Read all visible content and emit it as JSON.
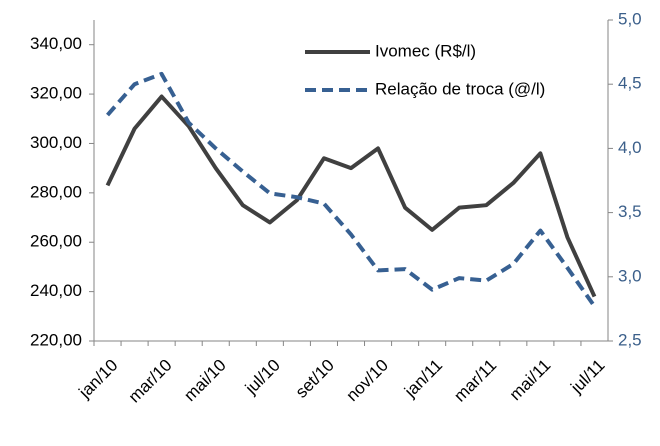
{
  "chart_data": {
    "type": "line",
    "categories": [
      "jan/10",
      null,
      "mar/10",
      null,
      "mai/10",
      null,
      "jul/10",
      null,
      "set/10",
      null,
      "nov/10",
      null,
      "jan/11",
      null,
      "mar/11",
      null,
      "mai/11",
      null,
      "jul/11"
    ],
    "series": [
      {
        "name": "Ivomec (R$/l)",
        "color": "#404040",
        "dash": false,
        "values": [
          283,
          306,
          319,
          307,
          290,
          275,
          268,
          277,
          294,
          290,
          298,
          274,
          265,
          274,
          275,
          284,
          296,
          262,
          238
        ]
      },
      {
        "name": "Relação de troca (@/l)",
        "color": "#376092",
        "dash": true,
        "axis": "y2",
        "values": [
          4.26,
          4.5,
          4.58,
          4.2,
          4.0,
          3.82,
          3.65,
          3.62,
          3.57,
          3.33,
          3.05,
          3.06,
          2.9,
          2.99,
          2.97,
          3.1,
          3.36,
          3.07,
          2.77
        ]
      }
    ],
    "ylim": [
      220,
      350
    ],
    "yticks": [
      {
        "value": 220,
        "label": "220,00"
      },
      {
        "value": 240,
        "label": "240,00"
      },
      {
        "value": 260,
        "label": "260,00"
      },
      {
        "value": 280,
        "label": "280,00"
      },
      {
        "value": 300,
        "label": "300,00"
      },
      {
        "value": 320,
        "label": "320,00"
      },
      {
        "value": 340,
        "label": "340,00"
      }
    ],
    "y2lim": [
      2.5,
      5.0
    ],
    "y2ticks": [
      {
        "value": 2.5,
        "label": "2,5"
      },
      {
        "value": 3.0,
        "label": "3,0"
      },
      {
        "value": 3.5,
        "label": "3,5"
      },
      {
        "value": 4.0,
        "label": "4,0"
      },
      {
        "value": 4.5,
        "label": "4,5"
      },
      {
        "value": 5.0,
        "label": "5,0"
      }
    ],
    "legend": "top-right"
  }
}
